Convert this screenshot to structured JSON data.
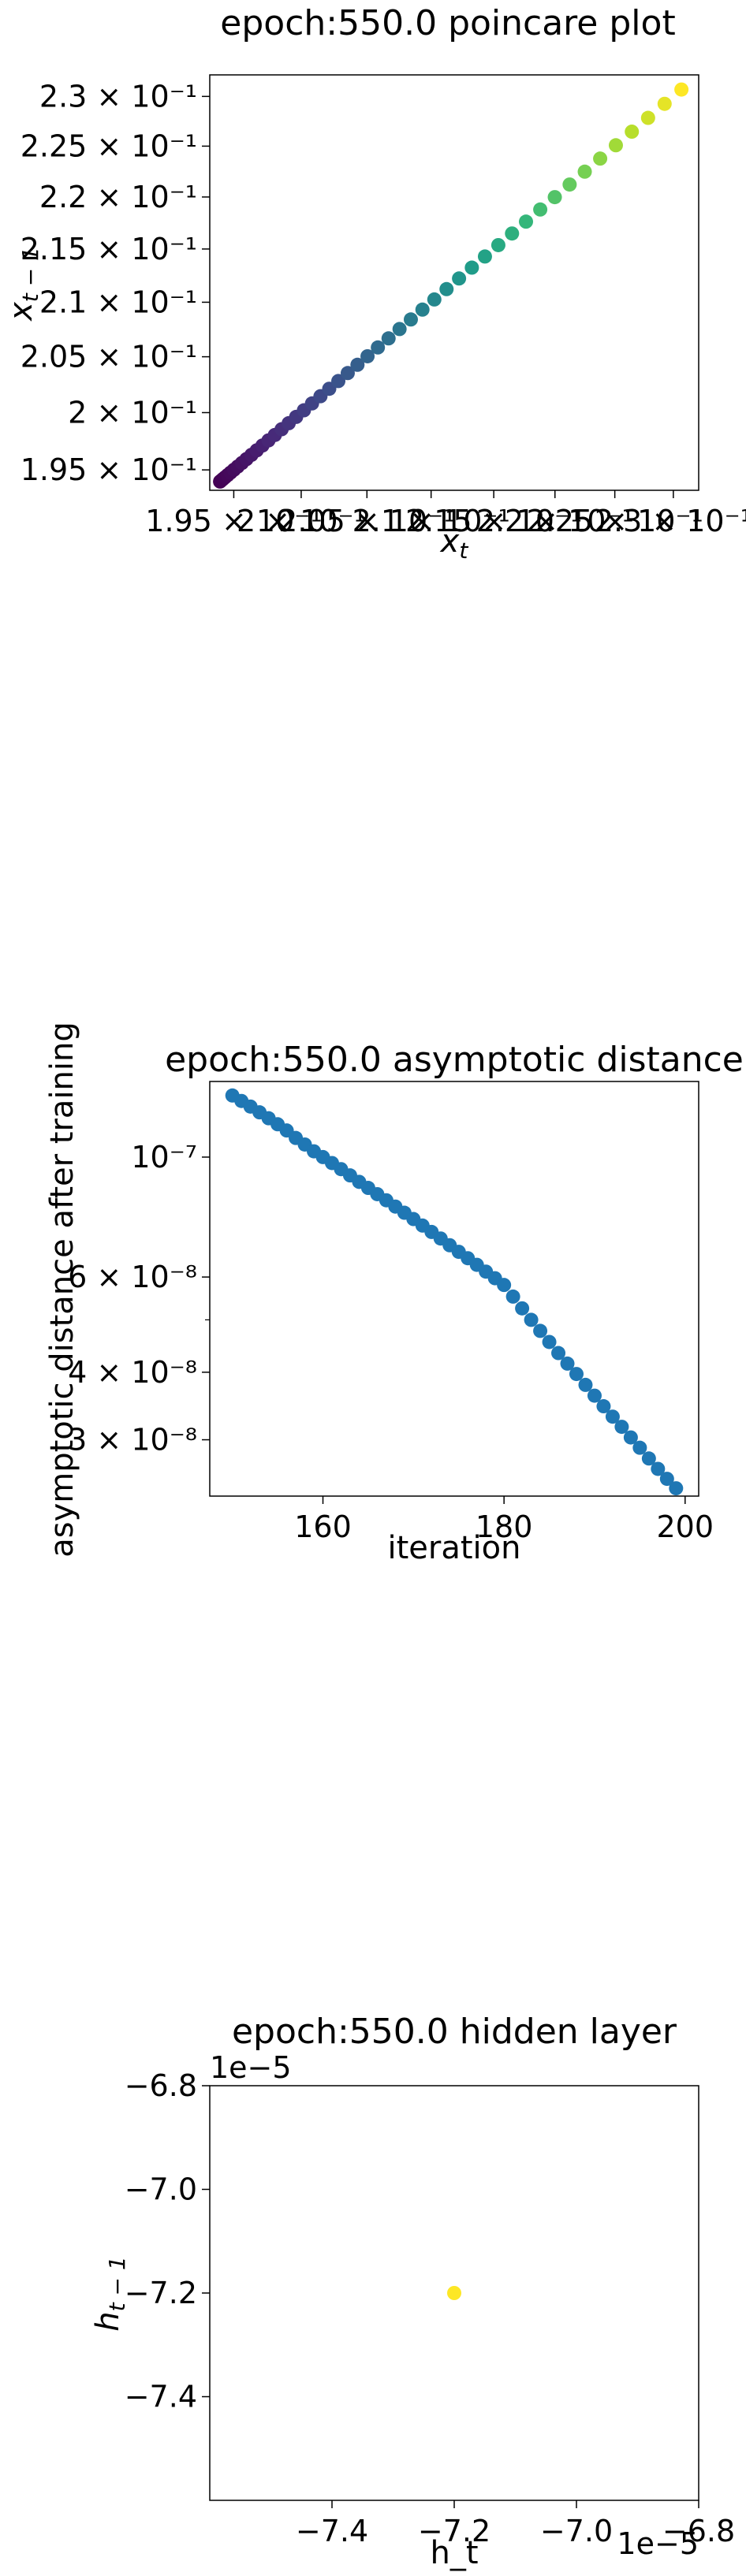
{
  "chart_data": [
    {
      "type": "scatter",
      "title": "epoch:550.0 poincare plot",
      "xlabel": "x_t",
      "ylabel": "x_{t-1}",
      "xscale": "log",
      "yscale": "log",
      "xlim": [
        0.19325,
        0.2322
      ],
      "ylim": [
        0.19325,
        0.2322
      ],
      "colormap": "viridis",
      "n_points": 50,
      "x_first": 0.194,
      "x_last": 0.2307,
      "xticks": [
        "1.95 × 10⁻¹",
        "2 × 10⁻¹",
        "2.05 × 10⁻¹",
        "2.1 × 10⁻¹",
        "2.15 × 10⁻¹",
        "2.2 × 10⁻¹",
        "2.25 × 10⁻¹",
        "2.3 × 10⁻¹"
      ],
      "yticks": [
        "1.95 × 10⁻¹",
        "2 × 10⁻¹",
        "2.05 × 10⁻¹",
        "2.1 × 10⁻¹",
        "2.15 × 10⁻¹",
        "2.2 × 10⁻¹",
        "2.25 × 10⁻¹",
        "2.3 × 10⁻¹"
      ]
    },
    {
      "type": "scatter",
      "title": "epoch:550.0 asymptotic distance",
      "xlabel": "iteration",
      "ylabel": "asymptotic distance after training",
      "yscale": "log",
      "xlim": [
        147.5,
        201.5
      ],
      "ylim": [
        2.36e-08,
        1.38e-07
      ],
      "color": "#1f77b4",
      "x": [
        150,
        151,
        152,
        153,
        154,
        155,
        156,
        157,
        158,
        159,
        160,
        161,
        162,
        163,
        164,
        165,
        166,
        167,
        168,
        169,
        170,
        171,
        172,
        173,
        174,
        175,
        176,
        177,
        178,
        179,
        180,
        181,
        182,
        183,
        184,
        185,
        186,
        187,
        188,
        189,
        190,
        191,
        192,
        193,
        194,
        195,
        196,
        197,
        198,
        199
      ],
      "y": [
        1.3e-07,
        1.27e-07,
        1.24e-07,
        1.21e-07,
        1.18e-07,
        1.15e-07,
        1.12e-07,
        1.085e-07,
        1.055e-07,
        1.025e-07,
        1e-07,
        9.75e-08,
        9.5e-08,
        9.25e-08,
        9e-08,
        8.77e-08,
        8.54e-08,
        8.32e-08,
        8.1e-08,
        7.89e-08,
        7.68e-08,
        7.47e-08,
        7.27e-08,
        7.07e-08,
        6.87e-08,
        6.68e-08,
        6.5e-08,
        6.32e-08,
        6.14e-08,
        5.97e-08,
        5.8e-08,
        5.52e-08,
        5.25e-08,
        5e-08,
        4.77e-08,
        4.55e-08,
        4.34e-08,
        4.15e-08,
        3.97e-08,
        3.79e-08,
        3.62e-08,
        3.46e-08,
        3.31e-08,
        3.17e-08,
        3.03e-08,
        2.9e-08,
        2.77e-08,
        2.65e-08,
        2.54e-08,
        2.44e-08
      ],
      "xticks": [
        "160",
        "180",
        "200"
      ],
      "yticks": [
        "10⁻⁷",
        "6 × 10⁻⁸",
        "4 × 10⁻⁸",
        "3 × 10⁻⁸"
      ]
    },
    {
      "type": "scatter",
      "title": "epoch:550.0 hidden layer",
      "xlabel": "h_t",
      "ylabel": "h_{t-1}",
      "xlim": [
        -7.6,
        -6.8
      ],
      "ylim": [
        -7.6,
        -6.8
      ],
      "x": [
        -7.2
      ],
      "y": [
        -7.2
      ],
      "color": "#fde725",
      "offset_text_x": "1e−5",
      "offset_text_y": "1e−5",
      "xticks": [
        "−7.4",
        "−7.2",
        "−7.0",
        "−6.8"
      ],
      "yticks": [
        "−6.8",
        "−7.0",
        "−7.2",
        "−7.4"
      ]
    }
  ]
}
